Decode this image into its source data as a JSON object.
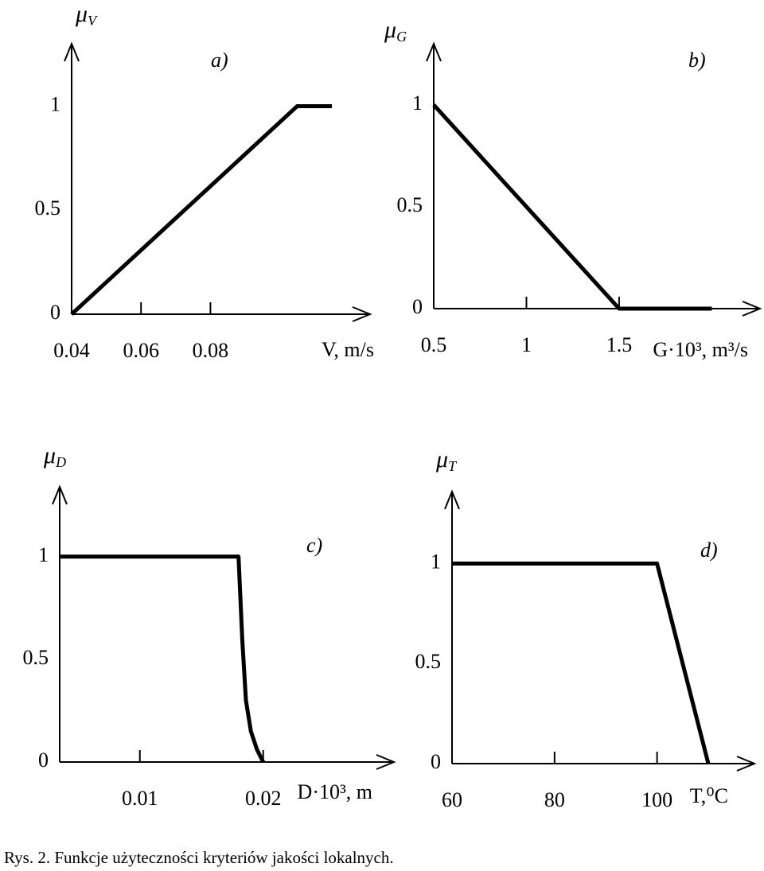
{
  "chart_data": [
    {
      "type": "line",
      "panel_label": "a)",
      "ylabel": "μ",
      "ylabel_sub": "V",
      "xlabel": "V, m/s",
      "x": [
        0.04,
        0.105,
        0.115
      ],
      "values": [
        0,
        1,
        1
      ],
      "color": "#000000",
      "xlim": [
        0.04,
        0.126
      ],
      "ylim": [
        0,
        1.3
      ],
      "xticks": [
        0.04,
        0.06,
        0.08
      ],
      "yticks": [
        0,
        0.5,
        1
      ]
    },
    {
      "type": "line",
      "panel_label": "b)",
      "ylabel": "μ",
      "ylabel_sub": "G",
      "xlabel": "G·10³, m³/s",
      "x": [
        0.5,
        1.5,
        2.0
      ],
      "values": [
        1,
        0,
        0
      ],
      "color": "#000000",
      "xlim": [
        0.5,
        2.26
      ],
      "ylim": [
        0,
        1.3
      ],
      "xticks": [
        0.5,
        1,
        1.5
      ],
      "yticks": [
        0,
        0.5,
        1
      ]
    },
    {
      "type": "line",
      "panel_label": "c)",
      "ylabel": "μ",
      "ylabel_sub": "D",
      "xlabel": "D·10³, m",
      "x": [
        0.0035,
        0.018,
        0.0183,
        0.0186,
        0.019,
        0.0195,
        0.02
      ],
      "values": [
        1,
        1,
        0.6,
        0.3,
        0.15,
        0.06,
        0
      ],
      "color": "#000000",
      "xlim": [
        0.0035,
        0.0306
      ],
      "ylim": [
        0,
        1.34
      ],
      "xticks": [
        0.01,
        0.02
      ],
      "yticks": [
        0,
        0.5,
        1
      ]
    },
    {
      "type": "line",
      "panel_label": "d)",
      "ylabel": "μ",
      "ylabel_sub": "T",
      "xlabel": "T,⁰C",
      "x": [
        60,
        100,
        110
      ],
      "values": [
        1,
        1,
        0
      ],
      "color": "#000000",
      "xlim": [
        60,
        119
      ],
      "ylim": [
        0,
        1.36
      ],
      "xticks": [
        60,
        80,
        100
      ],
      "yticks": [
        0,
        0.5,
        1
      ]
    }
  ],
  "caption": "Rys. 2. Funkcje użyteczności kryteriów jakości lokalnych."
}
